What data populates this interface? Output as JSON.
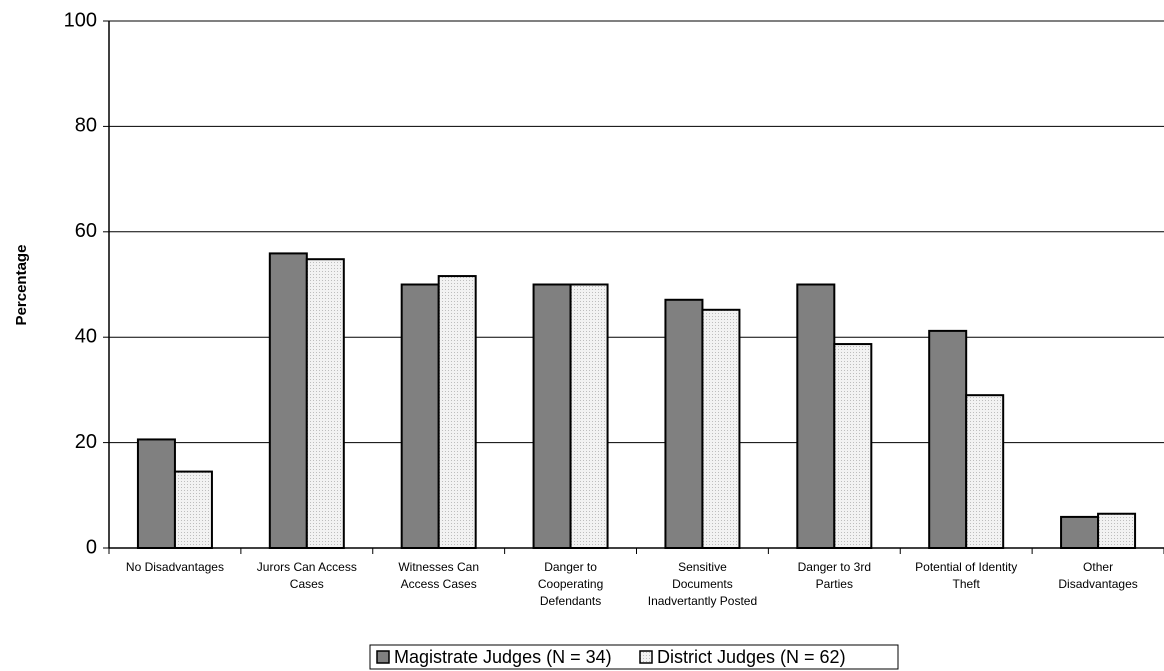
{
  "chart_data": {
    "type": "bar",
    "categories": [
      "No Disadvantages",
      "Jurors Can Access Cases",
      "Witnesses Can Access Cases",
      "Danger to Cooperating Defendants",
      "Sensitive Documents Inadvertantly Posted",
      "Danger to 3rd Parties",
      "Potential of Identity Theft",
      "Other Disadvantages"
    ],
    "category_lines": [
      [
        "No Disadvantages"
      ],
      [
        "Jurors Can Access",
        "Cases"
      ],
      [
        "Witnesses Can",
        "Access Cases"
      ],
      [
        "Danger to",
        "Cooperating",
        "Defendants"
      ],
      [
        "Sensitive",
        "Documents",
        "Inadvertantly Posted"
      ],
      [
        "Danger to 3rd",
        "Parties"
      ],
      [
        "Potential of Identity",
        "Theft"
      ],
      [
        "Other",
        "Disadvantages"
      ]
    ],
    "series": [
      {
        "name": "Magistrate Judges (N = 34)",
        "color": "#808080",
        "values": [
          20.6,
          55.9,
          50.0,
          50.0,
          47.1,
          50.0,
          41.2,
          5.9
        ]
      },
      {
        "name": "District Judges (N = 62)",
        "color": "#e6e6e6",
        "values": [
          14.5,
          54.8,
          51.6,
          50.0,
          45.2,
          38.7,
          29.0,
          6.5
        ]
      }
    ],
    "ylabel": "Percentage",
    "ylim": [
      0,
      100
    ],
    "yticks": [
      0,
      20,
      40,
      60,
      80,
      100
    ],
    "grid": true,
    "legend_position": "bottom-center"
  }
}
